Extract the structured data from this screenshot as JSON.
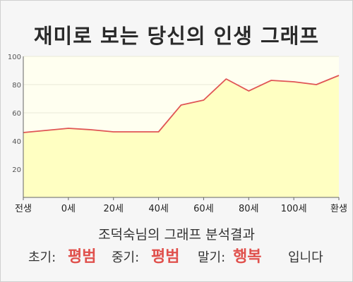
{
  "title": "재미로 보는 당신의 인생 그래프",
  "chart_data": {
    "type": "area",
    "x_labels": [
      "전생",
      "0세",
      "20세",
      "40세",
      "60세",
      "80세",
      "100세",
      "환생"
    ],
    "y_ticks": [
      20,
      40,
      60,
      80,
      100
    ],
    "ylim": [
      0,
      100
    ],
    "x": [
      0,
      3,
      6,
      9,
      12,
      15,
      18,
      19.5,
      21,
      24,
      27,
      30,
      33,
      36,
      39,
      42
    ],
    "values": [
      46,
      47.5,
      49,
      48,
      46.5,
      46.5,
      46.5,
      56,
      65.5,
      69,
      84,
      75.5,
      83,
      82,
      80,
      86.5
    ],
    "line_color": "#e05555",
    "fill_color": "#ffffc2",
    "plot_background": "#fffff0"
  },
  "summary": "조덕숙님의 그래프 분석결과",
  "results": {
    "early_label": "초기:",
    "early_value": "평범",
    "middle_label": "중기:",
    "middle_value": "평범",
    "late_label": "말기:",
    "late_value": "행복",
    "ending": "입니다"
  }
}
